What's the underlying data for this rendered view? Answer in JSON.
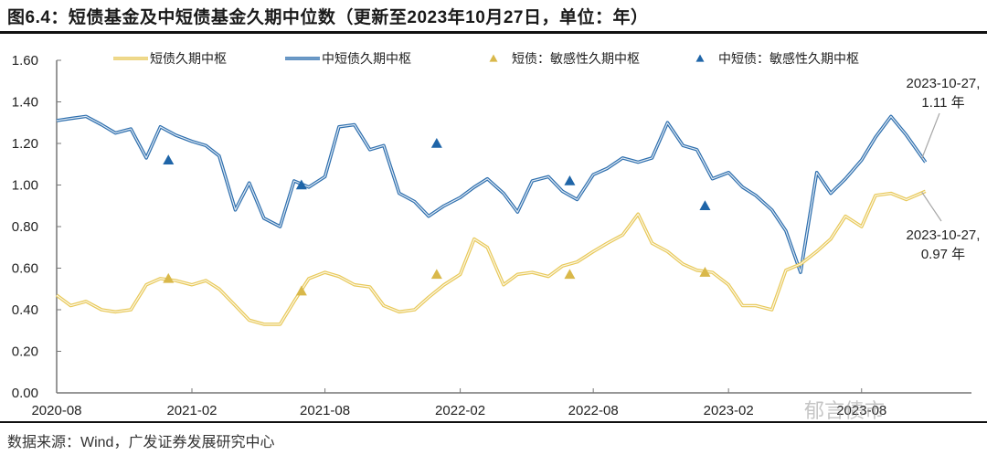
{
  "title": "图6.4：短债基金及中短债基金久期中位数（更新至2023年10月27日，单位：年）",
  "source": "数据来源：Wind，广发证券发展研究中心",
  "watermark": "郁言债市",
  "colors": {
    "short_line": "#E8C95A",
    "mid_short_line": "#2E6FAE",
    "short_marker": "#D9B84A",
    "mid_short_marker": "#1F65A8",
    "axis": "#777777",
    "annotation_line": "#A6A6A6"
  },
  "legend": [
    {
      "label": "短债久期中枢",
      "type": "line",
      "color_key": "short_line"
    },
    {
      "label": "中短债久期中枢",
      "type": "line",
      "color_key": "mid_short_line"
    },
    {
      "label": "短债：敏感性久期中枢",
      "type": "marker",
      "color_key": "short_marker"
    },
    {
      "label": "中短债：敏感性久期中枢",
      "type": "marker",
      "color_key": "mid_short_marker"
    }
  ],
  "annotations": [
    {
      "line1": "2023-10-27,",
      "line2": "1.11 年"
    },
    {
      "line1": "2023-10-27,",
      "line2": "0.97 年"
    }
  ],
  "chart_data": {
    "type": "line",
    "title": "短债基金及中短债基金久期中位数（更新至2023年10月27日，单位：年）",
    "xlabel": "",
    "ylabel": "年",
    "ylim": [
      0,
      1.6
    ],
    "yticks": [
      "0.00",
      "0.20",
      "0.40",
      "0.60",
      "0.80",
      "1.00",
      "1.20",
      "1.40",
      "1.60"
    ],
    "xticks": [
      "2020-08",
      "2021-02",
      "2021-08",
      "2022-02",
      "2022-08",
      "2023-02",
      "2023-08"
    ],
    "grid": false,
    "legend_position": "top",
    "x": [
      "2020-08-01",
      "2020-08-20",
      "2020-09-10",
      "2020-10-01",
      "2020-10-20",
      "2020-11-10",
      "2020-12-01",
      "2020-12-20",
      "2021-01-10",
      "2021-02-01",
      "2021-02-20",
      "2021-03-10",
      "2021-04-01",
      "2021-04-20",
      "2021-05-10",
      "2021-06-01",
      "2021-06-20",
      "2021-07-10",
      "2021-08-01",
      "2021-08-20",
      "2021-09-10",
      "2021-10-01",
      "2021-10-20",
      "2021-11-10",
      "2021-12-01",
      "2021-12-20",
      "2022-01-10",
      "2022-02-01",
      "2022-02-20",
      "2022-03-10",
      "2022-04-01",
      "2022-04-20",
      "2022-05-10",
      "2022-06-01",
      "2022-06-20",
      "2022-07-10",
      "2022-08-01",
      "2022-08-20",
      "2022-09-10",
      "2022-10-01",
      "2022-10-20",
      "2022-11-10",
      "2022-12-01",
      "2022-12-20",
      "2023-01-10",
      "2023-02-01",
      "2023-02-20",
      "2023-03-10",
      "2023-04-01",
      "2023-04-20",
      "2023-05-10",
      "2023-06-01",
      "2023-06-20",
      "2023-07-10",
      "2023-08-01",
      "2023-08-20",
      "2023-09-10",
      "2023-10-01",
      "2023-10-27"
    ],
    "series": [
      {
        "name": "中短债久期中枢",
        "values": [
          1.31,
          1.32,
          1.33,
          1.29,
          1.25,
          1.27,
          1.13,
          1.28,
          1.24,
          1.21,
          1.19,
          1.14,
          0.88,
          1.01,
          0.84,
          0.8,
          1.02,
          0.99,
          1.04,
          1.28,
          1.29,
          1.17,
          1.19,
          0.96,
          0.92,
          0.85,
          0.9,
          0.94,
          0.99,
          1.03,
          0.96,
          0.87,
          1.02,
          1.04,
          0.97,
          0.93,
          1.05,
          1.08,
          1.13,
          1.11,
          1.13,
          1.3,
          1.19,
          1.17,
          1.03,
          1.06,
          0.99,
          0.95,
          0.88,
          0.78,
          0.58,
          1.06,
          0.96,
          1.03,
          1.12,
          1.23,
          1.33,
          1.24,
          1.11
        ]
      },
      {
        "name": "短债久期中枢",
        "values": [
          0.47,
          0.42,
          0.44,
          0.4,
          0.39,
          0.4,
          0.52,
          0.55,
          0.54,
          0.52,
          0.54,
          0.5,
          0.42,
          0.35,
          0.33,
          0.33,
          0.44,
          0.55,
          0.58,
          0.56,
          0.52,
          0.51,
          0.42,
          0.39,
          0.4,
          0.46,
          0.52,
          0.57,
          0.74,
          0.7,
          0.52,
          0.57,
          0.58,
          0.56,
          0.61,
          0.63,
          0.68,
          0.72,
          0.76,
          0.86,
          0.72,
          0.68,
          0.62,
          0.59,
          0.58,
          0.52,
          0.42,
          0.42,
          0.4,
          0.59,
          0.62,
          0.68,
          0.74,
          0.85,
          0.8,
          0.95,
          0.96,
          0.93,
          0.97
        ]
      },
      {
        "name": "短债：敏感性久期中枢",
        "type": "scatter",
        "x": [
          "2020-12-31",
          "2021-06-30",
          "2021-12-31",
          "2022-06-30",
          "2022-12-31"
        ],
        "values": [
          0.55,
          0.49,
          0.57,
          0.57,
          0.58
        ]
      },
      {
        "name": "中短债：敏感性久期中枢",
        "type": "scatter",
        "x": [
          "2020-12-31",
          "2021-06-30",
          "2021-12-31",
          "2022-06-30",
          "2022-12-31"
        ],
        "values": [
          1.12,
          1.0,
          1.2,
          1.02,
          0.9
        ]
      }
    ],
    "annotations": [
      {
        "text": "2023-10-27, 1.11 年",
        "series": "中短债久期中枢",
        "x": "2023-10-27",
        "y": 1.11
      },
      {
        "text": "2023-10-27, 0.97 年",
        "series": "短债久期中枢",
        "x": "2023-10-27",
        "y": 0.97
      }
    ]
  }
}
